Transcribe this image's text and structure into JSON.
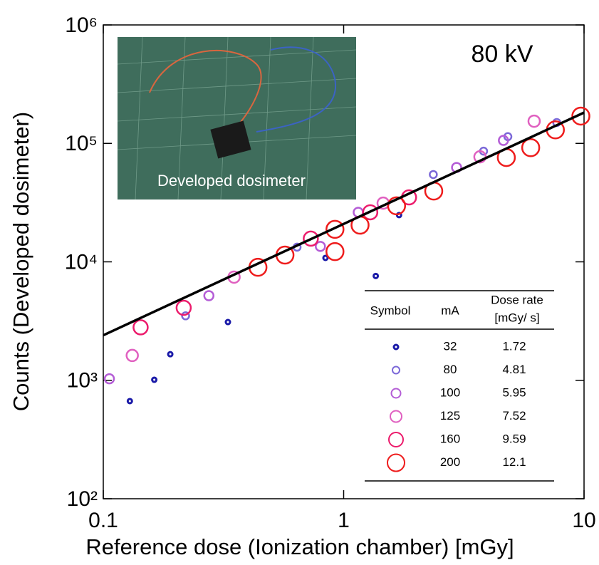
{
  "chart_data": {
    "type": "scatter",
    "xlabel": "Reference dose (Ionization chamber) [mGy]",
    "ylabel": "Counts (Developed dosimeter)",
    "annotation": "80 kV",
    "inset_label": "Developed dosimeter",
    "xscale": "log",
    "yscale": "log",
    "xlim": [
      0.1,
      10
    ],
    "ylim": [
      100,
      1000000
    ],
    "xticks": [
      0.1,
      1,
      10
    ],
    "yticks": [
      {
        "value": 100,
        "label": "10²"
      },
      {
        "value": 1000,
        "label": "10³"
      },
      {
        "value": 10000,
        "label": "10⁴"
      },
      {
        "value": 100000,
        "label": "10⁵"
      },
      {
        "value": 1000000,
        "label": "10⁶"
      }
    ],
    "legend_headers": [
      "Symbol",
      "mA"
    ],
    "legend_dose_header": [
      "Dose rate",
      "[mGy/ s]"
    ],
    "legend_position": "lower right",
    "fit": {
      "x": [
        0.1,
        10
      ],
      "y": [
        2400,
        182000
      ],
      "color": "#000000"
    },
    "series": [
      {
        "name": "32",
        "dose_rate": "1.72",
        "color": "#1a1aa8",
        "x": [
          0.129,
          0.163,
          0.19,
          0.33,
          0.84,
          1.36,
          1.7
        ],
        "y": [
          667,
          1010,
          1660,
          3100,
          10800,
          7600,
          24800
        ]
      },
      {
        "name": "80",
        "dose_rate": "4.81",
        "color": "#7b68d8",
        "x": [
          0.22,
          0.64,
          2.36,
          3.82,
          4.82,
          7.7
        ],
        "y": [
          3500,
          13300,
          54600,
          86000,
          114000,
          150000
        ]
      },
      {
        "name": "100",
        "dose_rate": "5.95",
        "color": "#b45dd6",
        "x": [
          0.106,
          0.275,
          0.8,
          1.15,
          2.95,
          4.62
        ],
        "y": [
          1030,
          5180,
          13500,
          26200,
          62600,
          106000
        ]
      },
      {
        "name": "125",
        "dose_rate": "7.52",
        "color": "#e060c0",
        "x": [
          0.132,
          0.35,
          1.46,
          3.69,
          6.2
        ],
        "y": [
          1620,
          7430,
          31300,
          77000,
          154000
        ]
      },
      {
        "name": "160",
        "dose_rate": "9.59",
        "color": "#ec1c6c",
        "x": [
          0.143,
          0.216,
          0.73,
          1.29,
          1.87
        ],
        "y": [
          2800,
          4090,
          15700,
          26200,
          35000
        ]
      },
      {
        "name": "200",
        "dose_rate": "12.1",
        "color": "#ee1c1c",
        "x": [
          0.44,
          0.57,
          0.92,
          0.92,
          1.17,
          1.66,
          2.37,
          4.75,
          6.0,
          7.6,
          9.7
        ],
        "y": [
          9000,
          11400,
          18800,
          12200,
          20400,
          29700,
          39600,
          76000,
          92000,
          130000,
          170000
        ]
      }
    ]
  }
}
